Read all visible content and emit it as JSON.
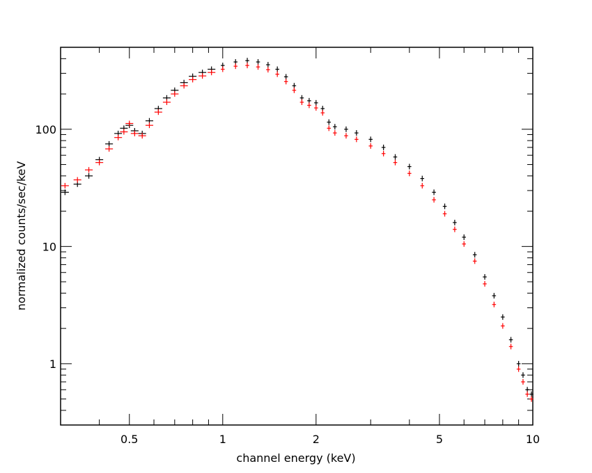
{
  "chart_data": {
    "type": "scatter",
    "title": "",
    "xlabel": "channel energy (keV)",
    "ylabel": "normalized counts/sec/keV",
    "x_scale": "log",
    "y_scale": "log",
    "xlim": [
      0.3,
      10
    ],
    "ylim": [
      0.3,
      500
    ],
    "x_ticks": [
      {
        "value": 0.5,
        "label": "0.5"
      },
      {
        "value": 1,
        "label": "1"
      },
      {
        "value": 2,
        "label": "2"
      },
      {
        "value": 5,
        "label": "5"
      },
      {
        "value": 10,
        "label": "10"
      }
    ],
    "y_ticks": [
      {
        "value": 1,
        "label": "1"
      },
      {
        "value": 10,
        "label": "10"
      },
      {
        "value": 100,
        "label": "100"
      }
    ],
    "grid": false,
    "legend": "none",
    "series": [
      {
        "color": "#000000",
        "x": [
          0.31,
          0.34,
          0.37,
          0.4,
          0.43,
          0.46,
          0.48,
          0.5,
          0.52,
          0.55,
          0.58,
          0.62,
          0.66,
          0.7,
          0.75,
          0.8,
          0.86,
          0.92,
          1.0,
          1.1,
          1.2,
          1.3,
          1.4,
          1.5,
          1.6,
          1.7,
          1.8,
          1.9,
          2.0,
          2.1,
          2.2,
          2.3,
          2.5,
          2.7,
          3.0,
          3.3,
          3.6,
          4.0,
          4.4,
          4.8,
          5.2,
          5.6,
          6.0,
          6.5,
          7.0,
          7.5,
          8.0,
          8.5,
          9.0,
          9.3,
          9.6,
          9.9
        ],
        "values": [
          29,
          34,
          40,
          55,
          75,
          92,
          102,
          108,
          97,
          92,
          118,
          150,
          185,
          215,
          250,
          283,
          305,
          325,
          350,
          375,
          385,
          375,
          355,
          325,
          280,
          235,
          185,
          175,
          168,
          150,
          115,
          105,
          100,
          93,
          82,
          70,
          58,
          48,
          38,
          29,
          22,
          16,
          12,
          8.5,
          5.5,
          3.8,
          2.5,
          1.6,
          1.0,
          0.8,
          0.6,
          0.55
        ]
      },
      {
        "color": "#ff0000",
        "x": [
          0.31,
          0.34,
          0.37,
          0.4,
          0.43,
          0.46,
          0.48,
          0.5,
          0.52,
          0.55,
          0.58,
          0.62,
          0.66,
          0.7,
          0.75,
          0.8,
          0.86,
          0.92,
          1.0,
          1.1,
          1.2,
          1.3,
          1.4,
          1.5,
          1.6,
          1.7,
          1.8,
          1.9,
          2.0,
          2.1,
          2.2,
          2.3,
          2.5,
          2.7,
          3.0,
          3.3,
          3.6,
          4.0,
          4.4,
          4.8,
          5.2,
          5.6,
          6.0,
          6.5,
          7.0,
          7.5,
          8.0,
          8.5,
          9.0,
          9.3,
          9.6,
          9.9
        ],
        "values": [
          33,
          37,
          45,
          52,
          68,
          85,
          95,
          112,
          92,
          88,
          108,
          140,
          170,
          200,
          235,
          265,
          285,
          305,
          325,
          345,
          350,
          340,
          322,
          295,
          255,
          215,
          170,
          160,
          152,
          138,
          102,
          93,
          88,
          82,
          72,
          62,
          52,
          42,
          33,
          25,
          19,
          14,
          10.5,
          7.5,
          4.8,
          3.2,
          2.1,
          1.4,
          0.9,
          0.7,
          0.55,
          0.5
        ]
      }
    ]
  }
}
